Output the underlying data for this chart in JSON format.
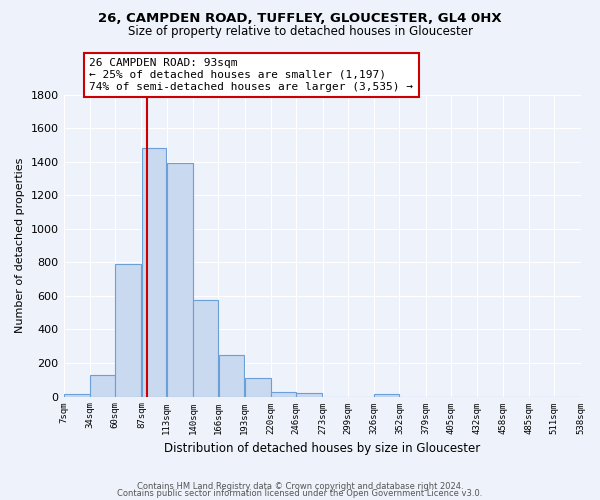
{
  "title": "26, CAMPDEN ROAD, TUFFLEY, GLOUCESTER, GL4 0HX",
  "subtitle": "Size of property relative to detached houses in Gloucester",
  "xlabel": "Distribution of detached houses by size in Gloucester",
  "ylabel": "Number of detached properties",
  "bin_edges": [
    7,
    34,
    60,
    87,
    113,
    140,
    166,
    193,
    220,
    246,
    273,
    299,
    326,
    352,
    379,
    405,
    432,
    458,
    485,
    511,
    538
  ],
  "bar_heights": [
    15,
    130,
    790,
    1480,
    1390,
    575,
    250,
    110,
    30,
    20,
    0,
    0,
    15,
    0,
    0,
    0,
    0,
    0,
    0,
    0
  ],
  "bar_color": "#c9d9f0",
  "bar_edge_color": "#6a9fd8",
  "property_line_x": 93,
  "property_line_color": "#cc0000",
  "annotation_line1": "26 CAMPDEN ROAD: 93sqm",
  "annotation_line2": "← 25% of detached houses are smaller (1,197)",
  "annotation_line3": "74% of semi-detached houses are larger (3,535) →",
  "annotation_box_edge_color": "#cc0000",
  "ylim": [
    0,
    1800
  ],
  "yticks": [
    0,
    200,
    400,
    600,
    800,
    1000,
    1200,
    1400,
    1600,
    1800
  ],
  "xtick_labels": [
    "7sqm",
    "34sqm",
    "60sqm",
    "87sqm",
    "113sqm",
    "140sqm",
    "166sqm",
    "193sqm",
    "220sqm",
    "246sqm",
    "273sqm",
    "299sqm",
    "326sqm",
    "352sqm",
    "379sqm",
    "405sqm",
    "432sqm",
    "458sqm",
    "485sqm",
    "511sqm",
    "538sqm"
  ],
  "footer_line1": "Contains HM Land Registry data © Crown copyright and database right 2024.",
  "footer_line2": "Contains public sector information licensed under the Open Government Licence v3.0.",
  "background_color": "#eef2fa"
}
